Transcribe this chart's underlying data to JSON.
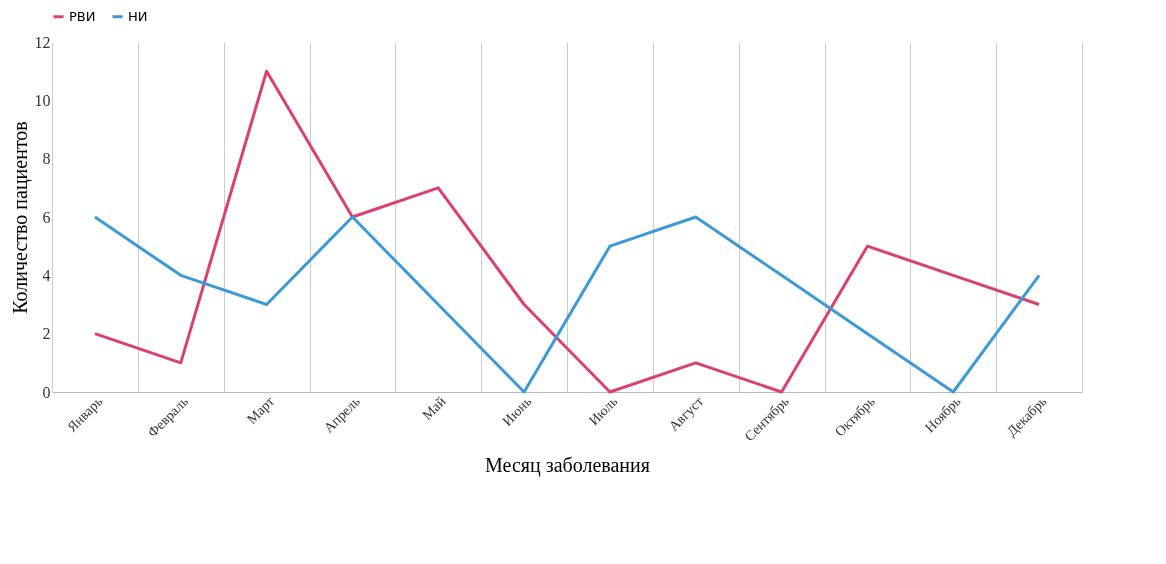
{
  "chart_data": {
    "type": "line",
    "xlabel": "Месяц заболевания",
    "ylabel": "Количество пациентов",
    "categories": [
      "Январь",
      "Февраль",
      "Март",
      "Апрель",
      "Май",
      "Июнь",
      "Июль",
      "Август",
      "Сентябрь",
      "Октябрь",
      "Ноябрь",
      "Декабрь"
    ],
    "series": [
      {
        "name": "РВИ",
        "color": "#d9416f",
        "values": [
          2,
          1,
          11,
          6,
          7,
          3,
          0,
          1,
          0,
          5,
          4,
          3
        ]
      },
      {
        "name": "НИ",
        "color": "#3c9ad6",
        "values": [
          6,
          4,
          3,
          6,
          3,
          0,
          5,
          6,
          4,
          2,
          0,
          4
        ]
      }
    ],
    "ylim": [
      0,
      12
    ],
    "yticks": [
      0,
      2,
      4,
      6,
      8,
      10,
      12
    ],
    "grid": "x",
    "legend": "top",
    "marker": "none",
    "line_style": "solid"
  }
}
